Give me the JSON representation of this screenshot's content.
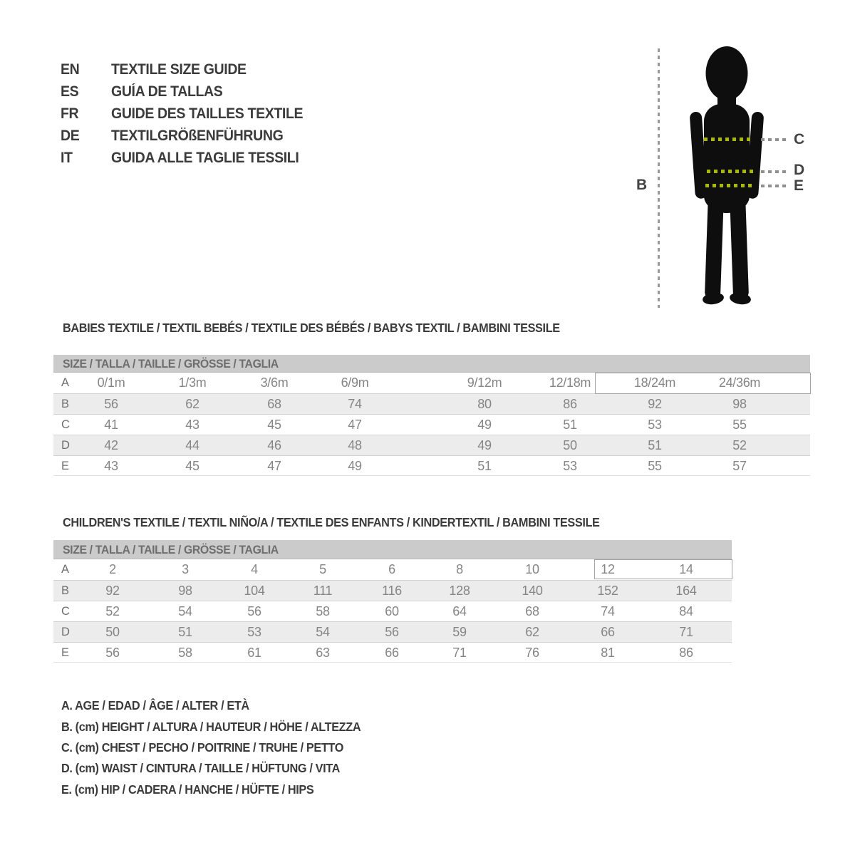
{
  "languages": [
    {
      "code": "EN",
      "label": "TEXTILE SIZE GUIDE"
    },
    {
      "code": "ES",
      "label": "GUÍA DE TALLAS"
    },
    {
      "code": "FR",
      "label": "GUIDE DES TAILLES TEXTILE"
    },
    {
      "code": "DE",
      "label": "TEXTILGRÖßENFÜHRUNG"
    },
    {
      "code": "IT",
      "label": "GUIDA ALLE TAGLIE TESSILI"
    }
  ],
  "figure": {
    "height_label": "B",
    "chest_label": "C",
    "waist_label": "D",
    "hip_label": "E"
  },
  "sections": {
    "babies": {
      "heading": "BABIES TEXTILE / TEXTIL BEBÉS / TEXTILE DES BÉBÉS / BABYS TEXTIL / BAMBINI TESSILE",
      "size_header": "SIZE / TALLA / TAILLE / GRÖSSE / TAGLIA",
      "rows": [
        {
          "label": "A",
          "values": [
            "0/1m",
            "1/3m",
            "3/6m",
            "6/9m",
            "9/12m",
            "12/18m",
            "18/24m",
            "24/36m"
          ]
        },
        {
          "label": "B",
          "values": [
            "56",
            "62",
            "68",
            "74",
            "80",
            "86",
            "92",
            "98"
          ]
        },
        {
          "label": "C",
          "values": [
            "41",
            "43",
            "45",
            "47",
            "49",
            "51",
            "53",
            "55"
          ]
        },
        {
          "label": "D",
          "values": [
            "42",
            "44",
            "46",
            "48",
            "49",
            "50",
            "51",
            "52"
          ]
        },
        {
          "label": "E",
          "values": [
            "43",
            "45",
            "47",
            "49",
            "51",
            "53",
            "55",
            "57"
          ]
        }
      ],
      "highlighted_sizes": [
        "18/24m",
        "24/36m"
      ]
    },
    "children": {
      "heading": "CHILDREN'S TEXTILE / TEXTIL NIÑO/A / TEXTILE DES ENFANTS / KINDERTEXTIL / BAMBINI TESSILE",
      "size_header": "SIZE / TALLA / TAILLE / GRÖSSE / TAGLIA",
      "rows": [
        {
          "label": "A",
          "values": [
            "2",
            "3",
            "4",
            "5",
            "6",
            "8",
            "10",
            "12",
            "14"
          ]
        },
        {
          "label": "B",
          "values": [
            "92",
            "98",
            "104",
            "111",
            "116",
            "128",
            "140",
            "152",
            "164"
          ]
        },
        {
          "label": "C",
          "values": [
            "52",
            "54",
            "56",
            "58",
            "60",
            "64",
            "68",
            "74",
            "84"
          ]
        },
        {
          "label": "D",
          "values": [
            "50",
            "51",
            "53",
            "54",
            "56",
            "59",
            "62",
            "66",
            "71"
          ]
        },
        {
          "label": "E",
          "values": [
            "56",
            "58",
            "61",
            "63",
            "66",
            "71",
            "76",
            "81",
            "86"
          ]
        }
      ],
      "highlighted_sizes": [
        "12",
        "14"
      ]
    }
  },
  "legend": {
    "lines": [
      "A. AGE / EDAD / ÂGE / ALTER / ETÀ",
      "B. (cm) HEIGHT / ALTURA / HAUTEUR / HÖHE / ALTEZZA",
      "C. (cm) CHEST / PECHO / POITRINE / TRUHE / PETTO",
      "D. (cm) WAIST / CINTURA / TAILLE / HÜFTUNG / VITA",
      "E. (cm) HIP / CADERA / HANCHE / HÜFTE / HIPS"
    ]
  },
  "colors": {
    "accent_green": "#a9b800",
    "header_band": "#cbcbcb",
    "alt_row": "#ececec",
    "silhouette": "#0e0e0e"
  }
}
